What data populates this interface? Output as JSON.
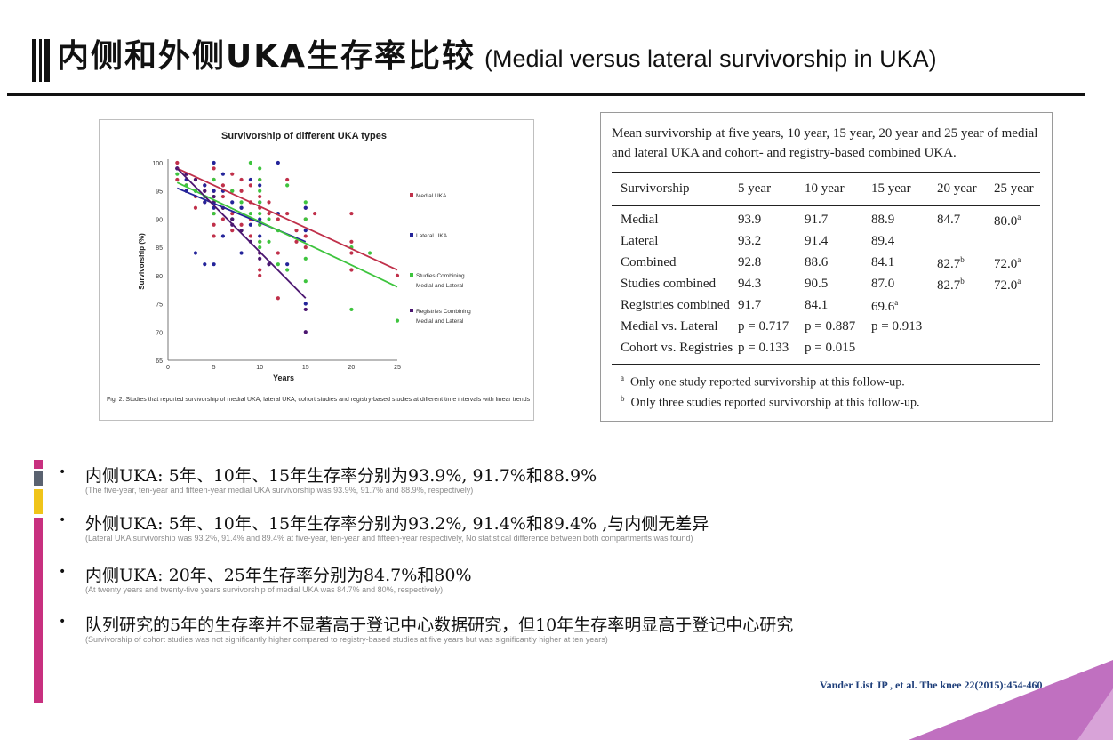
{
  "header": {
    "title_zh": "内侧和外侧UKA生存率比较",
    "title_en": "(Medial versus lateral survivorship in UKA)"
  },
  "figure": {
    "caption": "Fig. 2. Studies that reported survivorship of medial UKA, lateral UKA, cohort studies and registry-based studies at different time intervals with linear trends of the studies."
  },
  "chart_data": {
    "type": "scatter",
    "title": "Survivorship of different UKA types",
    "xlabel": "Years",
    "ylabel": "Survivorship (%)",
    "xlim": [
      0,
      25
    ],
    "ylim": [
      65,
      100
    ],
    "x_ticks": [
      0,
      5,
      10,
      15,
      20,
      25
    ],
    "y_ticks": [
      65,
      70,
      75,
      80,
      85,
      90,
      95,
      100
    ],
    "grid": false,
    "legend_position": "right",
    "series": [
      {
        "name": "Medial UKA",
        "color": "#c0304a",
        "points": [
          [
            1,
            100
          ],
          [
            1,
            99
          ],
          [
            1,
            97
          ],
          [
            2,
            98
          ],
          [
            2,
            96
          ],
          [
            2,
            95
          ],
          [
            3,
            97
          ],
          [
            3,
            94
          ],
          [
            3,
            92
          ],
          [
            4,
            96
          ],
          [
            4,
            95
          ],
          [
            4,
            93
          ],
          [
            5,
            99
          ],
          [
            5,
            97
          ],
          [
            5,
            95
          ],
          [
            5,
            93
          ],
          [
            5,
            91
          ],
          [
            5,
            89
          ],
          [
            5,
            87
          ],
          [
            6,
            96
          ],
          [
            6,
            94
          ],
          [
            6,
            92
          ],
          [
            6,
            90
          ],
          [
            7,
            98
          ],
          [
            7,
            95
          ],
          [
            7,
            91
          ],
          [
            7,
            88
          ],
          [
            8,
            97
          ],
          [
            8,
            95
          ],
          [
            8,
            92
          ],
          [
            8,
            89
          ],
          [
            9,
            96
          ],
          [
            9,
            93
          ],
          [
            9,
            90
          ],
          [
            9,
            87
          ],
          [
            10,
            97
          ],
          [
            10,
            94
          ],
          [
            10,
            92
          ],
          [
            10,
            89
          ],
          [
            10,
            86
          ],
          [
            10,
            84
          ],
          [
            10,
            81
          ],
          [
            10,
            80
          ],
          [
            11,
            93
          ],
          [
            11,
            91
          ],
          [
            12,
            90
          ],
          [
            12,
            84
          ],
          [
            12,
            76
          ],
          [
            13,
            97
          ],
          [
            13,
            91
          ],
          [
            14,
            88
          ],
          [
            14,
            86
          ],
          [
            15,
            92
          ],
          [
            15,
            90
          ],
          [
            15,
            87
          ],
          [
            15,
            85
          ],
          [
            16,
            91
          ],
          [
            20,
            91
          ],
          [
            20,
            86
          ],
          [
            20,
            84
          ],
          [
            20,
            81
          ],
          [
            25,
            80
          ]
        ],
        "trend": [
          [
            1,
            99
          ],
          [
            25,
            81
          ]
        ]
      },
      {
        "name": "Lateral UKA",
        "color": "#24249a",
        "points": [
          [
            1,
            99
          ],
          [
            2,
            97
          ],
          [
            2,
            95
          ],
          [
            3,
            95
          ],
          [
            3,
            84
          ],
          [
            4,
            96
          ],
          [
            4,
            93
          ],
          [
            4,
            82
          ],
          [
            5,
            100
          ],
          [
            5,
            95
          ],
          [
            5,
            92
          ],
          [
            5,
            82
          ],
          [
            6,
            98
          ],
          [
            6,
            95
          ],
          [
            6,
            87
          ],
          [
            7,
            93
          ],
          [
            7,
            90
          ],
          [
            8,
            92
          ],
          [
            8,
            84
          ],
          [
            9,
            97
          ],
          [
            9,
            89
          ],
          [
            10,
            96
          ],
          [
            10,
            93
          ],
          [
            10,
            90
          ],
          [
            10,
            87
          ],
          [
            11,
            82
          ],
          [
            12,
            100
          ],
          [
            12,
            91
          ],
          [
            13,
            82
          ],
          [
            15,
            92
          ],
          [
            15,
            88
          ],
          [
            15,
            75
          ]
        ],
        "trend": [
          [
            1,
            95.5
          ],
          [
            15,
            86
          ]
        ]
      },
      {
        "name": "Studies Combining Medial and Lateral",
        "color": "#3ec43e",
        "points": [
          [
            1,
            98
          ],
          [
            2,
            96
          ],
          [
            3,
            95
          ],
          [
            4,
            94
          ],
          [
            5,
            97
          ],
          [
            5,
            94
          ],
          [
            5,
            91
          ],
          [
            6,
            92
          ],
          [
            7,
            95
          ],
          [
            7,
            90
          ],
          [
            8,
            93
          ],
          [
            8,
            88
          ],
          [
            9,
            100
          ],
          [
            9,
            91
          ],
          [
            10,
            99
          ],
          [
            10,
            97
          ],
          [
            10,
            95
          ],
          [
            10,
            93
          ],
          [
            10,
            91
          ],
          [
            10,
            89
          ],
          [
            10,
            86
          ],
          [
            10,
            85
          ],
          [
            11,
            90
          ],
          [
            11,
            86
          ],
          [
            12,
            88
          ],
          [
            12,
            82
          ],
          [
            13,
            96
          ],
          [
            13,
            81
          ],
          [
            15,
            93
          ],
          [
            15,
            90
          ],
          [
            15,
            83
          ],
          [
            15,
            79
          ],
          [
            20,
            85
          ],
          [
            20,
            74
          ],
          [
            22,
            84
          ],
          [
            25,
            72
          ]
        ],
        "trend": [
          [
            1,
            96.5
          ],
          [
            25,
            78
          ]
        ]
      },
      {
        "name": "Registries Combining Medial and Lateral",
        "color": "#4b1670",
        "points": [
          [
            1,
            99
          ],
          [
            2,
            98
          ],
          [
            3,
            97
          ],
          [
            4,
            95
          ],
          [
            5,
            94
          ],
          [
            5,
            93
          ],
          [
            6,
            92
          ],
          [
            7,
            90
          ],
          [
            7,
            89
          ],
          [
            8,
            88
          ],
          [
            9,
            86
          ],
          [
            10,
            84
          ],
          [
            10,
            83
          ],
          [
            11,
            82
          ],
          [
            15,
            74
          ],
          [
            15,
            70
          ]
        ],
        "trend": [
          [
            1,
            99
          ],
          [
            15,
            76
          ]
        ]
      }
    ]
  },
  "table": {
    "caption": "Mean survivorship at five years, 10 year, 15 year, 20 year and 25 year of medial and lateral UKA and cohort- and registry-based combined UKA.",
    "headers": [
      "Survivorship",
      "5 year",
      "10 year",
      "15 year",
      "20 year",
      "25 year"
    ],
    "rows": [
      {
        "label": "Medial",
        "c1": "93.9",
        "c2": "91.7",
        "c3": "88.9",
        "c4": "84.7",
        "c5": "80.0",
        "c5_sup": "a"
      },
      {
        "label": "Lateral",
        "c1": "93.2",
        "c2": "91.4",
        "c3": "89.4"
      },
      {
        "label": "Combined",
        "c1": "92.8",
        "c2": "88.6",
        "c3": "84.1",
        "c4": "82.7",
        "c4_sup": "b",
        "c5": "72.0",
        "c5_sup": "a"
      },
      {
        "label": "Studies combined",
        "c1": "94.3",
        "c2": "90.5",
        "c3": "87.0",
        "c4": "82.7",
        "c4_sup": "b",
        "c5": "72.0",
        "c5_sup": "a"
      },
      {
        "label": "Registries combined",
        "c1": "91.7",
        "c2": "84.1",
        "c3": "69.6",
        "c3_sup": "a"
      },
      {
        "label": "Medial vs. Lateral",
        "c1": "p = 0.717",
        "c2": "p = 0.887",
        "c3": "p = 0.913"
      },
      {
        "label": "Cohort vs. Registries",
        "c1": "p = 0.133",
        "c2": "p = 0.015"
      }
    ],
    "notes": [
      {
        "mark": "a",
        "text": "Only one study reported survivorship at this follow-up."
      },
      {
        "mark": "b",
        "text": "Only three studies reported survivorship at this follow-up."
      }
    ]
  },
  "bullets": [
    {
      "zh": "内侧UKA: 5年、10年、15年生存率分别为93.9%, 91.7%和88.9%",
      "en": "(The five-year, ten-year and fifteen-year medial UKA survivorship    was 93.9%, 91.7% and 88.9%, respectively)"
    },
    {
      "zh": "外侧UKA: 5年、10年、15年生存率分别为93.2%, 91.4%和89.4% ,与内侧无差异",
      "en": "(Lateral UKA survivorship was 93.2%, 91.4% and 89.4% at five-year, ten-year and fifteen-year respectively, No statistical difference between both compartments was found)"
    },
    {
      "zh": "内侧UKA: 20年、25年生存率分别为84.7%和80%",
      "en": "(At twenty years and twenty-five years survivorship of medial UKA was 84.7% and 80%, respectively)"
    },
    {
      "zh": "队列研究的5年的生存率并不显著高于登记中心数据研究，但10年生存率明显高于登记中心研究",
      "en": "(Survivorship of cohort studies was not significantly higher compared to registry-based studies at five years  but was significantly higher at ten years)"
    }
  ],
  "bullet_marker": "•",
  "citation": "Vander List JP , et al. The knee 22(2015):454-460",
  "colors": {
    "side_magenta": "#c8307f",
    "side_slate": "#5a6270",
    "side_yellow": "#f0c419",
    "corner_violet": "#c070c0",
    "citation_blue": "#1f3f7a"
  }
}
